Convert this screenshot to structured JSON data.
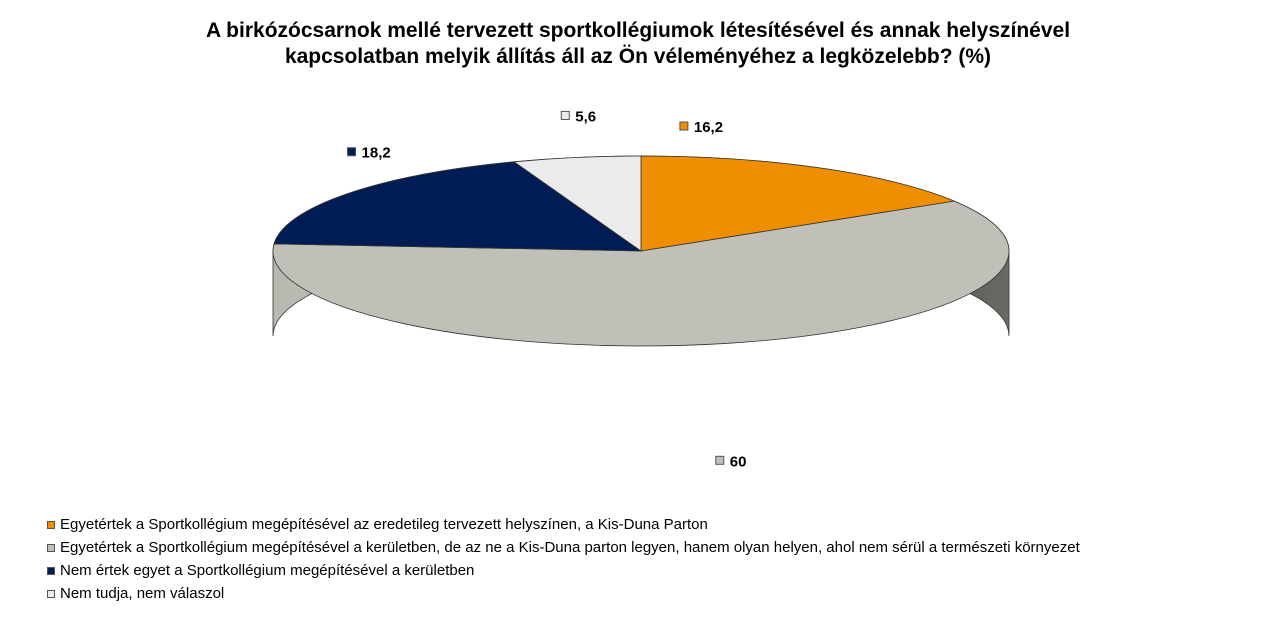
{
  "chart_data": {
    "type": "pie",
    "title_lines": [
      "A birkózócsarnok mellé tervezett sportkollégiumok létesítésével és annak helyszínével",
      "kapcsolatban melyik állítás áll az Ön véleményéhez a legközelebb? (%)"
    ],
    "slices": [
      {
        "label": "Egyetértek a Sportkollégium megépítésével az eredetileg tervezett helyszínen, a Kis-Duna Parton",
        "value": 16.2,
        "display": "16,2",
        "color": "#EE8E00"
      },
      {
        "label": "Egyetértek a Sportkollégium megépítésével a kerületben, de az ne a Kis-Duna parton legyen, hanem olyan helyen, ahol nem sérül a természeti környezet",
        "value": 60,
        "display": "60",
        "color": "#C0C0B8"
      },
      {
        "label": "Nem értek egyet a Sportkollégium megépítésével a kerületben",
        "value": 18.2,
        "display": "18,2",
        "color": "#001C54"
      },
      {
        "label": "Nem tudja, nem válaszol",
        "value": 5.6,
        "display": "5,6",
        "color": "#EBEBEB"
      }
    ],
    "legend_position": "bottom-left",
    "three_d": true
  }
}
